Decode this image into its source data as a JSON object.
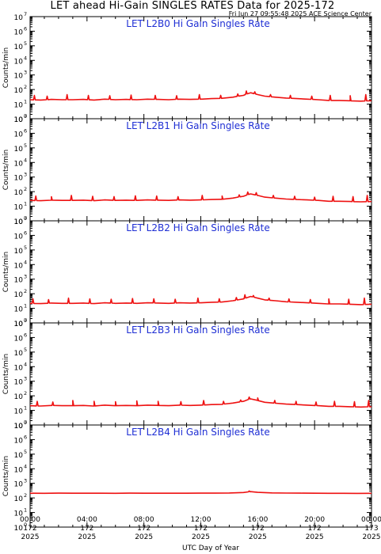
{
  "title": "LET ahead Hi-Gain SINGLES RATES Data for 2025-172",
  "timestamp": "Fri Jun 27 09:55:48 2025 ACE Science Center",
  "chart_data": {
    "type": "line",
    "xlabel": "UTC Day of Year",
    "xlim": [
      0,
      24
    ],
    "x_ticks": [
      {
        "time": "00:00",
        "day": "172",
        "year": "2025"
      },
      {
        "time": "04:00",
        "day": "172",
        "year": "2025"
      },
      {
        "time": "08:00",
        "day": "172",
        "year": "2025"
      },
      {
        "time": "12:00",
        "day": "172",
        "year": "2025"
      },
      {
        "time": "16:00",
        "day": "172",
        "year": "2025"
      },
      {
        "time": "20:00",
        "day": "172",
        "year": "2025"
      },
      {
        "time": "00:00",
        "day": "173",
        "year": "2025"
      }
    ],
    "ylabel": "Counts/min",
    "y_scale": "log",
    "ylim": [
      1,
      10000000
    ],
    "y_tick_base": "10",
    "y_tick_exponents": [
      "0",
      "1",
      "2",
      "3",
      "4",
      "5",
      "6",
      "7"
    ],
    "series_color": "#ee1111",
    "panels": [
      {
        "title": "LET L2B0 Hi Gain Singles Rate",
        "x": [
          0,
          0.75,
          1.5,
          2.25,
          3,
          3.75,
          4.5,
          5.25,
          6,
          6.75,
          7.5,
          8.25,
          9,
          9.75,
          10.5,
          11.25,
          12,
          12.75,
          13.5,
          14.25,
          15,
          15.5,
          16,
          16.5,
          17.25,
          18,
          18.75,
          19.5,
          20.25,
          21,
          21.75,
          22.5,
          23.25,
          24
        ],
        "y": [
          20,
          19,
          21,
          20,
          20,
          21,
          19,
          22,
          20,
          21,
          20,
          22,
          21,
          20,
          22,
          21,
          22,
          24,
          25,
          30,
          40,
          60,
          45,
          35,
          30,
          26,
          24,
          22,
          20,
          18,
          18,
          17,
          16,
          17
        ],
        "spikes_x": [
          0.3,
          1.2,
          2.6,
          4.1,
          5.6,
          7.1,
          8.8,
          10.3,
          11.9,
          13.4,
          14.6,
          15.2,
          15.8,
          16.9,
          18.3,
          19.8,
          21.1,
          22.5,
          23.6
        ],
        "spikes_y": [
          40,
          35,
          45,
          40,
          38,
          42,
          40,
          38,
          45,
          40,
          50,
          80,
          70,
          45,
          40,
          35,
          40,
          38,
          45
        ]
      },
      {
        "title": "LET L2B1 Hi Gain Singles Rate",
        "x": [
          0,
          0.75,
          1.5,
          2.25,
          3,
          3.75,
          4.5,
          5.25,
          6,
          6.75,
          7.5,
          8.25,
          9,
          9.75,
          10.5,
          11.25,
          12,
          12.75,
          13.5,
          14.25,
          15,
          15.5,
          16,
          16.5,
          17.25,
          18,
          18.75,
          19.5,
          20.25,
          21,
          21.75,
          22.5,
          23.25,
          24
        ],
        "y": [
          25,
          24,
          26,
          25,
          25,
          26,
          24,
          27,
          25,
          26,
          25,
          27,
          26,
          25,
          27,
          26,
          27,
          29,
          30,
          36,
          48,
          70,
          55,
          42,
          36,
          31,
          29,
          27,
          25,
          22,
          22,
          21,
          20,
          21
        ],
        "spikes_x": [
          0.4,
          1.5,
          2.9,
          4.4,
          5.9,
          7.4,
          8.9,
          10.4,
          12.1,
          13.5,
          14.7,
          15.3,
          15.9,
          17.1,
          18.6,
          20.0,
          21.3,
          22.7,
          23.7
        ],
        "spikes_y": [
          50,
          45,
          55,
          48,
          46,
          52,
          50,
          45,
          55,
          50,
          60,
          95,
          85,
          55,
          48,
          42,
          48,
          46,
          55
        ]
      },
      {
        "title": "LET L2B2 Hi Gain Singles Rate",
        "x": [
          0,
          0.75,
          1.5,
          2.25,
          3,
          3.75,
          4.5,
          5.25,
          6,
          6.75,
          7.5,
          8.25,
          9,
          9.75,
          10.5,
          11.25,
          12,
          12.75,
          13.5,
          14.25,
          15,
          15.5,
          16,
          16.5,
          17.25,
          18,
          18.75,
          19.5,
          20.25,
          21,
          21.75,
          22.5,
          23.25,
          24
        ],
        "y": [
          22,
          21,
          23,
          22,
          22,
          23,
          21,
          24,
          22,
          23,
          22,
          24,
          23,
          22,
          24,
          23,
          24,
          26,
          27,
          33,
          44,
          65,
          50,
          38,
          33,
          28,
          26,
          24,
          22,
          20,
          20,
          19,
          18,
          19
        ],
        "spikes_x": [
          0.2,
          1.3,
          2.7,
          4.2,
          5.7,
          7.2,
          8.7,
          10.2,
          11.8,
          13.3,
          14.5,
          15.1,
          15.7,
          16.8,
          18.2,
          19.7,
          21.0,
          22.4,
          23.5
        ],
        "spikes_y": [
          45,
          40,
          50,
          44,
          42,
          47,
          45,
          42,
          50,
          45,
          55,
          85,
          75,
          50,
          44,
          40,
          44,
          42,
          50
        ]
      },
      {
        "title": "LET L2B3 Hi Gain Singles Rate",
        "x": [
          0,
          0.75,
          1.5,
          2.25,
          3,
          3.75,
          4.5,
          5.25,
          6,
          6.75,
          7.5,
          8.25,
          9,
          9.75,
          10.5,
          11.25,
          12,
          12.75,
          13.5,
          14.25,
          15,
          15.5,
          16,
          16.5,
          17.25,
          18,
          18.75,
          19.5,
          20.25,
          21,
          21.75,
          22.5,
          23.25,
          24
        ],
        "y": [
          21,
          20,
          22,
          21,
          21,
          22,
          20,
          23,
          21,
          22,
          21,
          23,
          22,
          21,
          23,
          22,
          23,
          25,
          26,
          32,
          42,
          62,
          48,
          36,
          31,
          27,
          25,
          23,
          21,
          19,
          19,
          18,
          17,
          18
        ],
        "spikes_x": [
          0.5,
          1.6,
          3.0,
          4.5,
          6.0,
          7.5,
          9.0,
          10.6,
          12.2,
          13.6,
          14.8,
          15.4,
          16.0,
          17.2,
          18.7,
          20.1,
          21.4,
          22.8,
          23.8
        ],
        "spikes_y": [
          42,
          38,
          48,
          42,
          40,
          45,
          42,
          40,
          48,
          42,
          52,
          82,
          72,
          48,
          42,
          38,
          42,
          40,
          48
        ]
      },
      {
        "title": "LET L2B4 Hi Gain Singles Rate",
        "x": [
          0,
          1,
          2,
          3,
          4,
          5,
          6,
          7,
          8,
          9,
          10,
          11,
          12,
          13,
          14,
          15,
          15.5,
          16,
          17,
          18,
          19,
          20,
          21,
          22,
          23,
          24
        ],
        "y": [
          210,
          208,
          212,
          209,
          210,
          211,
          208,
          212,
          210,
          209,
          211,
          210,
          212,
          214,
          218,
          235,
          270,
          240,
          222,
          215,
          212,
          210,
          208,
          207,
          206,
          207
        ],
        "spikes_x": [
          15.4
        ],
        "spikes_y": [
          300
        ]
      }
    ]
  }
}
